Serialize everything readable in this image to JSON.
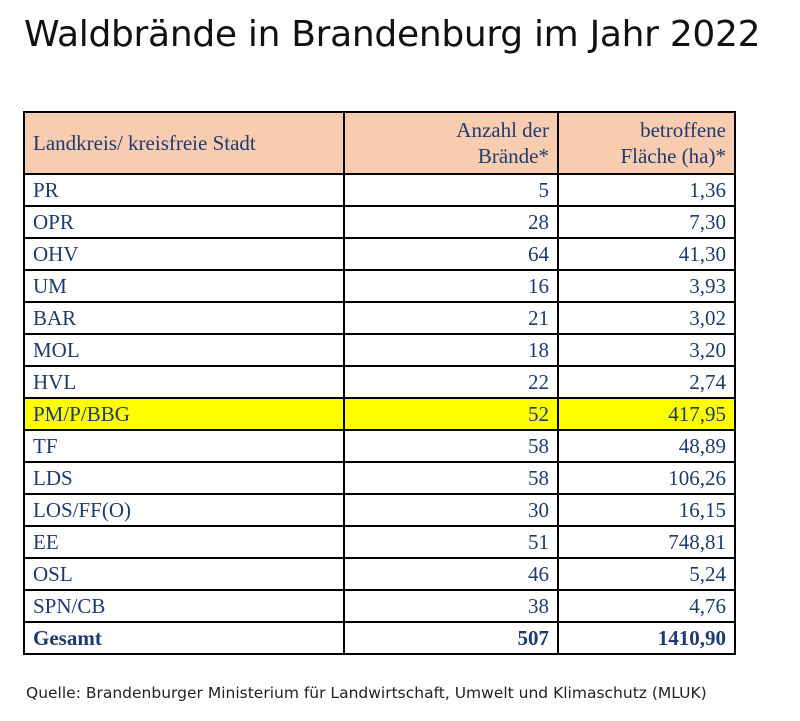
{
  "title": "Waldbrände in Brandenburg im Jahr 2022",
  "table": {
    "headers": {
      "kreis": "Landkreis/ kreisfreie Stadt",
      "anzahl_line1": "Anzahl der",
      "anzahl_line2": "Brände*",
      "flaeche_line1": "betroffene",
      "flaeche_line2": "Fläche (ha)*"
    },
    "rows": [
      {
        "kreis": "PR",
        "anzahl": "5",
        "flaeche": "1,36"
      },
      {
        "kreis": "OPR",
        "anzahl": "28",
        "flaeche": "7,30"
      },
      {
        "kreis": "OHV",
        "anzahl": "64",
        "flaeche": "41,30"
      },
      {
        "kreis": "UM",
        "anzahl": "16",
        "flaeche": "3,93"
      },
      {
        "kreis": "BAR",
        "anzahl": "21",
        "flaeche": "3,02"
      },
      {
        "kreis": "MOL",
        "anzahl": "18",
        "flaeche": "3,20"
      },
      {
        "kreis": "HVL",
        "anzahl": "22",
        "flaeche": "2,74"
      },
      {
        "kreis": "PM/P/BBG",
        "anzahl": "52",
        "flaeche": "417,95",
        "highlight": true
      },
      {
        "kreis": "TF",
        "anzahl": "58",
        "flaeche": "48,89"
      },
      {
        "kreis": "LDS",
        "anzahl": "58",
        "flaeche": "106,26"
      },
      {
        "kreis": "LOS/FF(O)",
        "anzahl": "30",
        "flaeche": "16,15"
      },
      {
        "kreis": "EE",
        "anzahl": "51",
        "flaeche": "748,81"
      },
      {
        "kreis": "OSL",
        "anzahl": "46",
        "flaeche": "5,24"
      },
      {
        "kreis": "SPN/CB",
        "anzahl": "38",
        "flaeche": "4,76"
      }
    ],
    "total": {
      "kreis": "Gesamt",
      "anzahl": "507",
      "flaeche": "1410,90"
    }
  },
  "source": "Quelle:  Brandenburger Ministerium für Landwirtschaft, Umwelt und Klimaschutz (MLUK)",
  "colors": {
    "header_bg": "#f8ccae",
    "highlight_bg": "#ffff00",
    "text": "#1f3a6e"
  }
}
